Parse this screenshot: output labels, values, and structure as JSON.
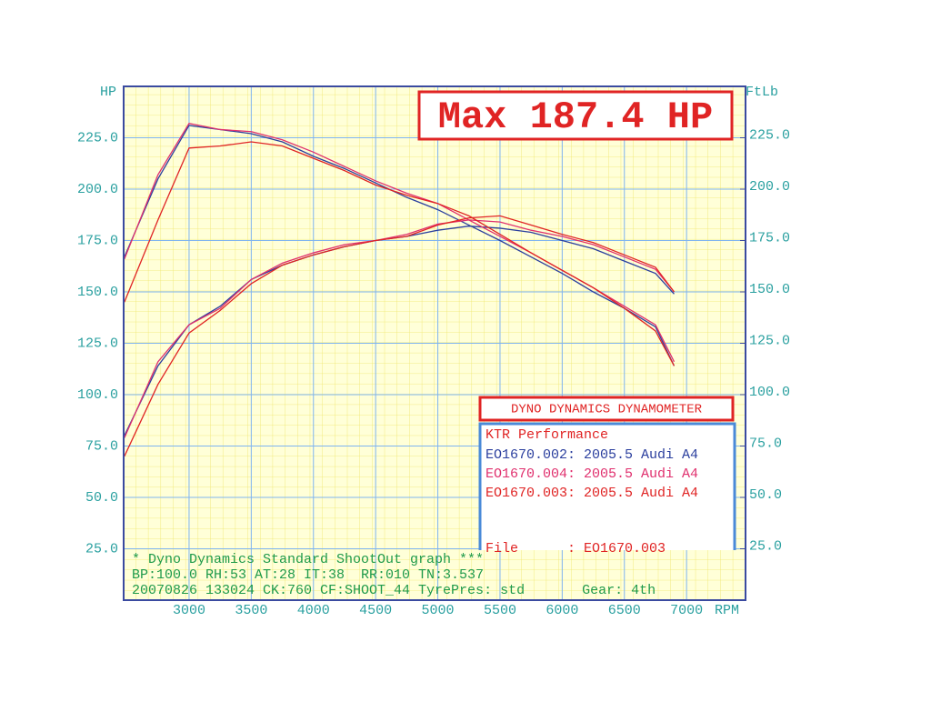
{
  "chart_data": {
    "type": "line",
    "y_label": "HP",
    "y2_label": "FtLb",
    "x_label": "RPM",
    "annotation": "Max 187.4 HP",
    "legend_title": "DYNO DYNAMICS DYNAMOMETER",
    "legend_subtitle": "KTR Performance",
    "file_line": "File      : EO1670.003",
    "footer": [
      "* Dyno Dynamics Standard ShootOut graph ***",
      "BP:100.0 RH:53 AT:28 IT:38  RR:010 TN:3.537",
      "20070826 133024 CK:760 CF:SHOOT_44 TyrePres: std       Gear: 4th"
    ],
    "x": [
      2480,
      2750,
      3000,
      3250,
      3500,
      3750,
      4000,
      4250,
      4500,
      4750,
      5000,
      5250,
      5500,
      5750,
      6000,
      6250,
      6500,
      6750,
      6900
    ],
    "xlim": [
      2474,
      7474
    ],
    "xticks": [
      3000,
      3500,
      4000,
      4500,
      5000,
      5500,
      6000,
      6500,
      7000
    ],
    "ylim": [
      0,
      250
    ],
    "yticks": [
      {
        "value": 25,
        "label": "25.0"
      },
      {
        "value": 50,
        "label": "50.0"
      },
      {
        "value": 75,
        "label": "75.0"
      },
      {
        "value": 100,
        "label": "100.0"
      },
      {
        "value": 125,
        "label": "125.0"
      },
      {
        "value": 150,
        "label": "150.0"
      },
      {
        "value": 175,
        "label": "175.0"
      },
      {
        "value": 200,
        "label": "200.0"
      },
      {
        "value": 225,
        "label": "225.0"
      }
    ],
    "y2lim": [
      0,
      250
    ],
    "y2ticks": [
      {
        "value": 25,
        "label": "25.0"
      },
      {
        "value": 50,
        "label": "50.0"
      },
      {
        "value": 75,
        "label": "75.0"
      },
      {
        "value": 100,
        "label": "100.0"
      },
      {
        "value": 125,
        "label": "125.0"
      },
      {
        "value": 150,
        "label": "150.0"
      },
      {
        "value": 175,
        "label": "175.0"
      },
      {
        "value": 200,
        "label": "200.0"
      },
      {
        "value": 225,
        "label": "225.0"
      }
    ],
    "grid": true,
    "series": [
      {
        "name": "EO1670.002: 2005.5 Audi A4",
        "color": "#2b3f9e",
        "values": [
          80,
          114,
          134,
          143,
          156,
          163,
          168,
          172,
          175,
          177,
          180,
          182,
          181,
          179,
          175,
          171,
          165,
          159,
          149
        ],
        "y2_values": [
          167,
          205,
          231,
          229,
          227,
          223,
          216,
          210,
          203,
          196,
          190,
          182.5,
          175,
          167,
          159,
          150,
          142,
          133,
          114
        ]
      },
      {
        "name": "EO1670.004: 2005.5 Audi A4",
        "color": "#e0306e",
        "values": [
          79,
          116,
          134,
          142,
          156,
          164,
          169,
          173,
          175,
          178,
          183,
          185,
          184,
          180,
          177,
          173,
          167,
          161,
          150
        ],
        "y2_values": [
          166,
          207,
          232,
          229,
          228,
          224,
          218,
          211,
          204,
          198,
          193,
          185,
          177,
          169,
          160.5,
          152,
          143,
          134,
          116
        ]
      },
      {
        "name": "EO1670.003: 2005.5 Audi A4",
        "color": "#e02424",
        "values": [
          70,
          105,
          130,
          141,
          154,
          163,
          168,
          172,
          175,
          177,
          182.5,
          186,
          187,
          182.5,
          178,
          174,
          168,
          162,
          150
        ],
        "y2_values": [
          145,
          185,
          220,
          221,
          223,
          221,
          215,
          209,
          202,
          197,
          193,
          187,
          178,
          169,
          160.5,
          152,
          142,
          131,
          114
        ]
      }
    ]
  }
}
